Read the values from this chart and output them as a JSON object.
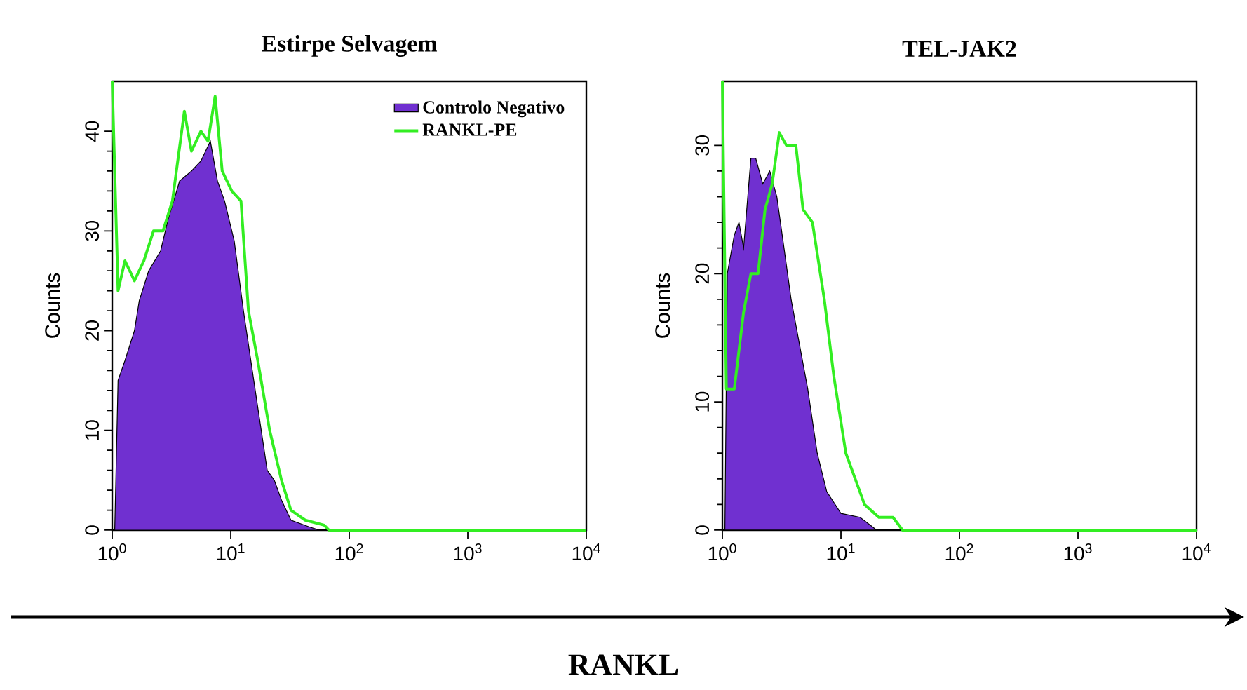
{
  "chart_data": [
    {
      "type": "area",
      "title": "Estirpe Selvagem",
      "ylabel": "Counts",
      "log": "x",
      "xlim": [
        1,
        10000
      ],
      "ylim": [
        0,
        45
      ],
      "xticks": [
        {
          "value": 1,
          "label": "10$^{0}$"
        },
        {
          "value": 10,
          "label": "10$^{1}$"
        },
        {
          "value": 100,
          "label": "10$^{2}$"
        },
        {
          "value": 1000,
          "label": "10$^{3}$"
        },
        {
          "value": 10000,
          "label": "10$^{4}$"
        }
      ],
      "yticks": [
        0,
        10,
        20,
        30,
        40
      ],
      "legend": "top right",
      "annotations": [
        "RANKL"
      ],
      "series": [
        {
          "name": "Controlo Negativo",
          "color": "#7030d0",
          "x": [
            1.05,
            1.12,
            1.28,
            1.54,
            1.69,
            2.03,
            2.56,
            2.94,
            3.7,
            4.66,
            5.6,
            6.73,
            7.73,
            8.87,
            10.7,
            12.8,
            16.1,
            20.3,
            23.3,
            26.8,
            32.2,
            46.6,
            56.0
          ],
          "values": [
            0,
            15,
            17,
            20,
            23,
            26,
            28,
            31,
            35,
            36,
            37,
            39,
            35,
            33,
            29,
            22,
            14,
            6,
            5,
            3,
            1,
            0.3,
            0
          ]
        },
        {
          "name": "RANKL-PE",
          "type": "line",
          "color": "#33ee22",
          "x": [
            1.0,
            1.12,
            1.28,
            1.54,
            1.85,
            2.23,
            2.68,
            3.22,
            4.06,
            4.66,
            5.6,
            6.43,
            7.38,
            8.47,
            10.2,
            12.2,
            14.1,
            16.9,
            21.3,
            26.8,
            32.2,
            42.5,
            61.4,
            67.3,
            10000
          ],
          "values": [
            45,
            24,
            27,
            25,
            27,
            30,
            30,
            33,
            42,
            38,
            40,
            39,
            43.5,
            36,
            34,
            33,
            22,
            17,
            10,
            5,
            2,
            1,
            0.5,
            0,
            0
          ]
        }
      ]
    },
    {
      "type": "area",
      "title": "TEL-JAK2",
      "ylabel": "Counts",
      "log": "x",
      "xlim": [
        1,
        10000
      ],
      "ylim": [
        0,
        35
      ],
      "xticks": [
        {
          "value": 1,
          "label": "10$^{0}$"
        },
        {
          "value": 10,
          "label": "10$^{1}$"
        },
        {
          "value": 100,
          "label": "10$^{2}$"
        },
        {
          "value": 1000,
          "label": "10$^{3}$"
        },
        {
          "value": 10000,
          "label": "10$^{4}$"
        }
      ],
      "yticks": [
        0,
        10,
        20,
        30
      ],
      "series": [
        {
          "color": "#7030d0",
          "x": [
            1.05,
            1.1,
            1.26,
            1.38,
            1.51,
            1.74,
            1.91,
            2.19,
            2.51,
            2.88,
            3.31,
            3.8,
            4.57,
            5.25,
            6.31,
            7.59,
            10,
            14.5,
            18.2,
            20.0
          ],
          "values": [
            0,
            20,
            23,
            24,
            22,
            29,
            29,
            27,
            28,
            26,
            22,
            18,
            14,
            11,
            6,
            3,
            1.3,
            1,
            0.3,
            0
          ]
        },
        {
          "type": "line",
          "color": "#33ee22",
          "x": [
            1.0,
            1.08,
            1.26,
            1.51,
            1.74,
            2.0,
            2.29,
            2.63,
            3.02,
            3.47,
            4.17,
            4.79,
            5.75,
            7.24,
            8.71,
            11.0,
            13.2,
            15.8,
            20.9,
            27.5,
            33.1,
            10000
          ],
          "values": [
            35,
            11,
            11,
            17,
            20,
            20,
            25,
            27,
            31,
            30,
            30,
            25,
            24,
            18,
            12,
            6,
            4,
            2,
            1,
            1,
            0,
            0
          ]
        }
      ]
    }
  ]
}
